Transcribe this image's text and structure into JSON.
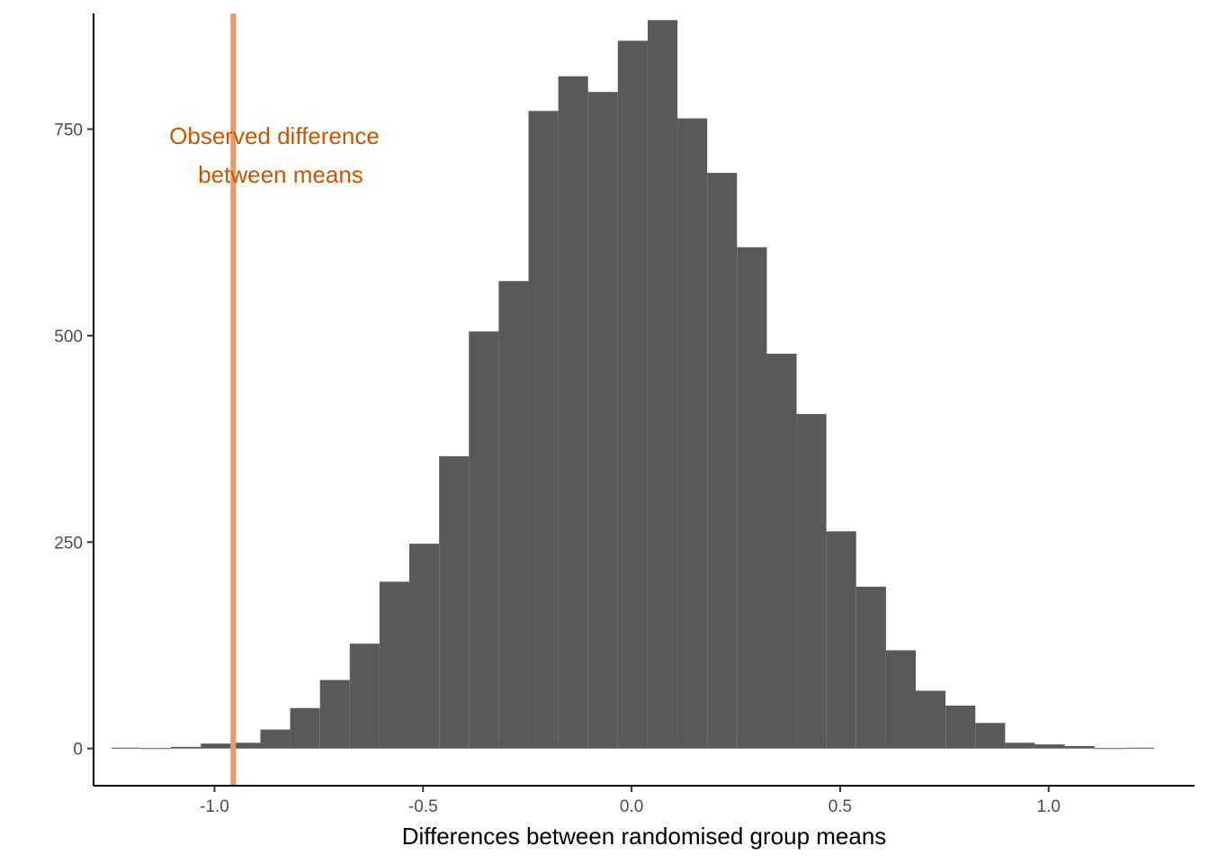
{
  "chart_data": {
    "type": "bar",
    "title": "",
    "xlabel": "Differences between randomised group means",
    "ylabel": "",
    "xlim": [
      -1.29,
      1.35
    ],
    "ylim": [
      -45,
      890
    ],
    "x_ticks": [
      -1.0,
      -0.5,
      0.0,
      0.5,
      1.0
    ],
    "x_tick_labels": [
      "-1.0",
      "-0.5",
      "0.0",
      "0.5",
      "1.0"
    ],
    "y_ticks": [
      0,
      250,
      500,
      750
    ],
    "y_tick_labels": [
      "0",
      "250",
      "500",
      "750"
    ],
    "grid": false,
    "legend": "none",
    "bin_width": 0.0714,
    "bins": [
      {
        "x0": -1.2471,
        "count": 1
      },
      {
        "x0": -1.1757,
        "count": 0
      },
      {
        "x0": -1.1043,
        "count": 2
      },
      {
        "x0": -1.0329,
        "count": 6
      },
      {
        "x0": -0.9614,
        "count": 7
      },
      {
        "x0": -0.89,
        "count": 23
      },
      {
        "x0": -0.8186,
        "count": 49
      },
      {
        "x0": -0.7471,
        "count": 83
      },
      {
        "x0": -0.6757,
        "count": 127
      },
      {
        "x0": -0.6043,
        "count": 202
      },
      {
        "x0": -0.5329,
        "count": 248
      },
      {
        "x0": -0.4614,
        "count": 354
      },
      {
        "x0": -0.39,
        "count": 505
      },
      {
        "x0": -0.3186,
        "count": 566
      },
      {
        "x0": -0.2471,
        "count": 772
      },
      {
        "x0": -0.1757,
        "count": 814
      },
      {
        "x0": -0.1043,
        "count": 795
      },
      {
        "x0": -0.0329,
        "count": 857
      },
      {
        "x0": 0.0386,
        "count": 882
      },
      {
        "x0": 0.11,
        "count": 763
      },
      {
        "x0": 0.1814,
        "count": 697
      },
      {
        "x0": 0.2529,
        "count": 607
      },
      {
        "x0": 0.3243,
        "count": 478
      },
      {
        "x0": 0.3957,
        "count": 405
      },
      {
        "x0": 0.4671,
        "count": 263
      },
      {
        "x0": 0.5386,
        "count": 196
      },
      {
        "x0": 0.61,
        "count": 119
      },
      {
        "x0": 0.6814,
        "count": 70
      },
      {
        "x0": 0.7529,
        "count": 52
      },
      {
        "x0": 0.8243,
        "count": 31
      },
      {
        "x0": 0.8957,
        "count": 7
      },
      {
        "x0": 0.9671,
        "count": 5
      },
      {
        "x0": 1.0386,
        "count": 3
      },
      {
        "x0": 1.11,
        "count": 0
      },
      {
        "x0": 1.1814,
        "count": 1
      }
    ],
    "bar_color": "#595959",
    "reference_line": {
      "x": -0.955,
      "color": "#E69A65",
      "label_lines": [
        "Observed difference",
        "between means"
      ],
      "label_color": "#CC5500"
    }
  }
}
